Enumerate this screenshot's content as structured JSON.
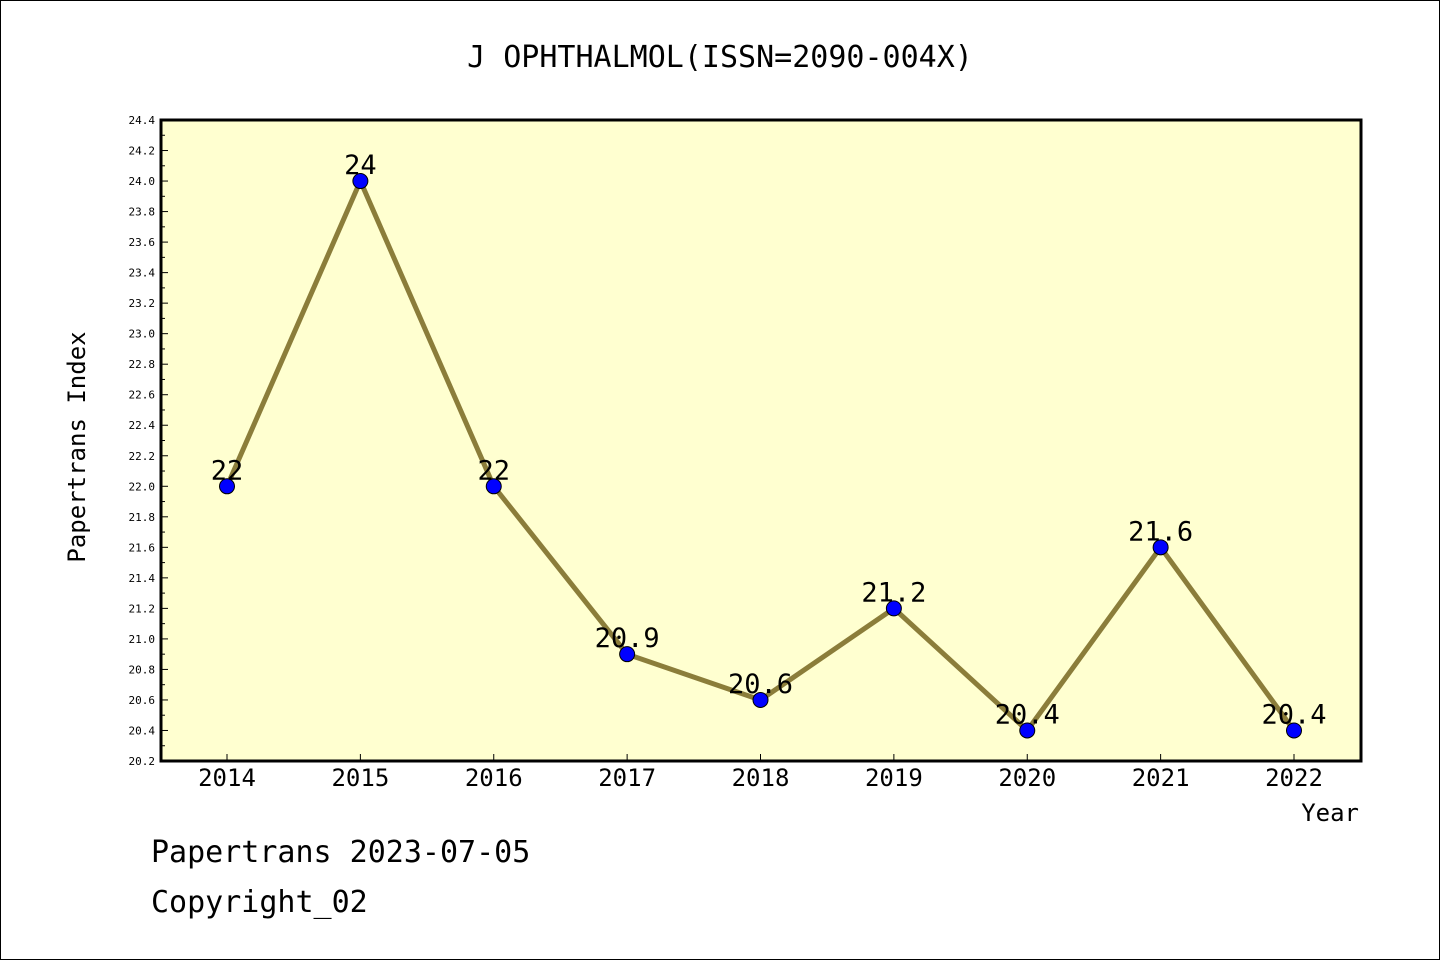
{
  "chart_data": {
    "type": "line",
    "title": "J OPHTHALMOL(ISSN=2090-004X)",
    "xlabel": "Year",
    "ylabel": "Papertrans Index",
    "categories": [
      "2014",
      "2015",
      "2016",
      "2017",
      "2018",
      "2019",
      "2020",
      "2021",
      "2022"
    ],
    "series": [
      {
        "values": [
          22,
          24,
          22,
          20.9,
          20.6,
          21.2,
          20.4,
          21.6,
          20.4
        ],
        "labels": [
          "22",
          "24",
          "22",
          "20.9",
          "20.6",
          "21.2",
          "20.4",
          "21.6",
          "20.4"
        ]
      }
    ],
    "ylim": [
      20.2,
      24.4
    ],
    "yticks": [
      "20.2",
      "20.4",
      "20.6",
      "20.8",
      "21.0",
      "21.2",
      "21.4",
      "21.6",
      "21.8",
      "22.0",
      "22.2",
      "22.4",
      "22.6",
      "22.8",
      "23.0",
      "23.2",
      "23.4",
      "23.6",
      "23.8",
      "24.0",
      "24.2",
      "24.4"
    ],
    "grid": false,
    "colors": {
      "plot_background": "#ffffd0",
      "line": "#8b7d3a",
      "marker": "#0000ff",
      "frame": "#000000"
    }
  },
  "footer": {
    "line1": "Papertrans 2023-07-05",
    "line2": "Copyright_02"
  }
}
